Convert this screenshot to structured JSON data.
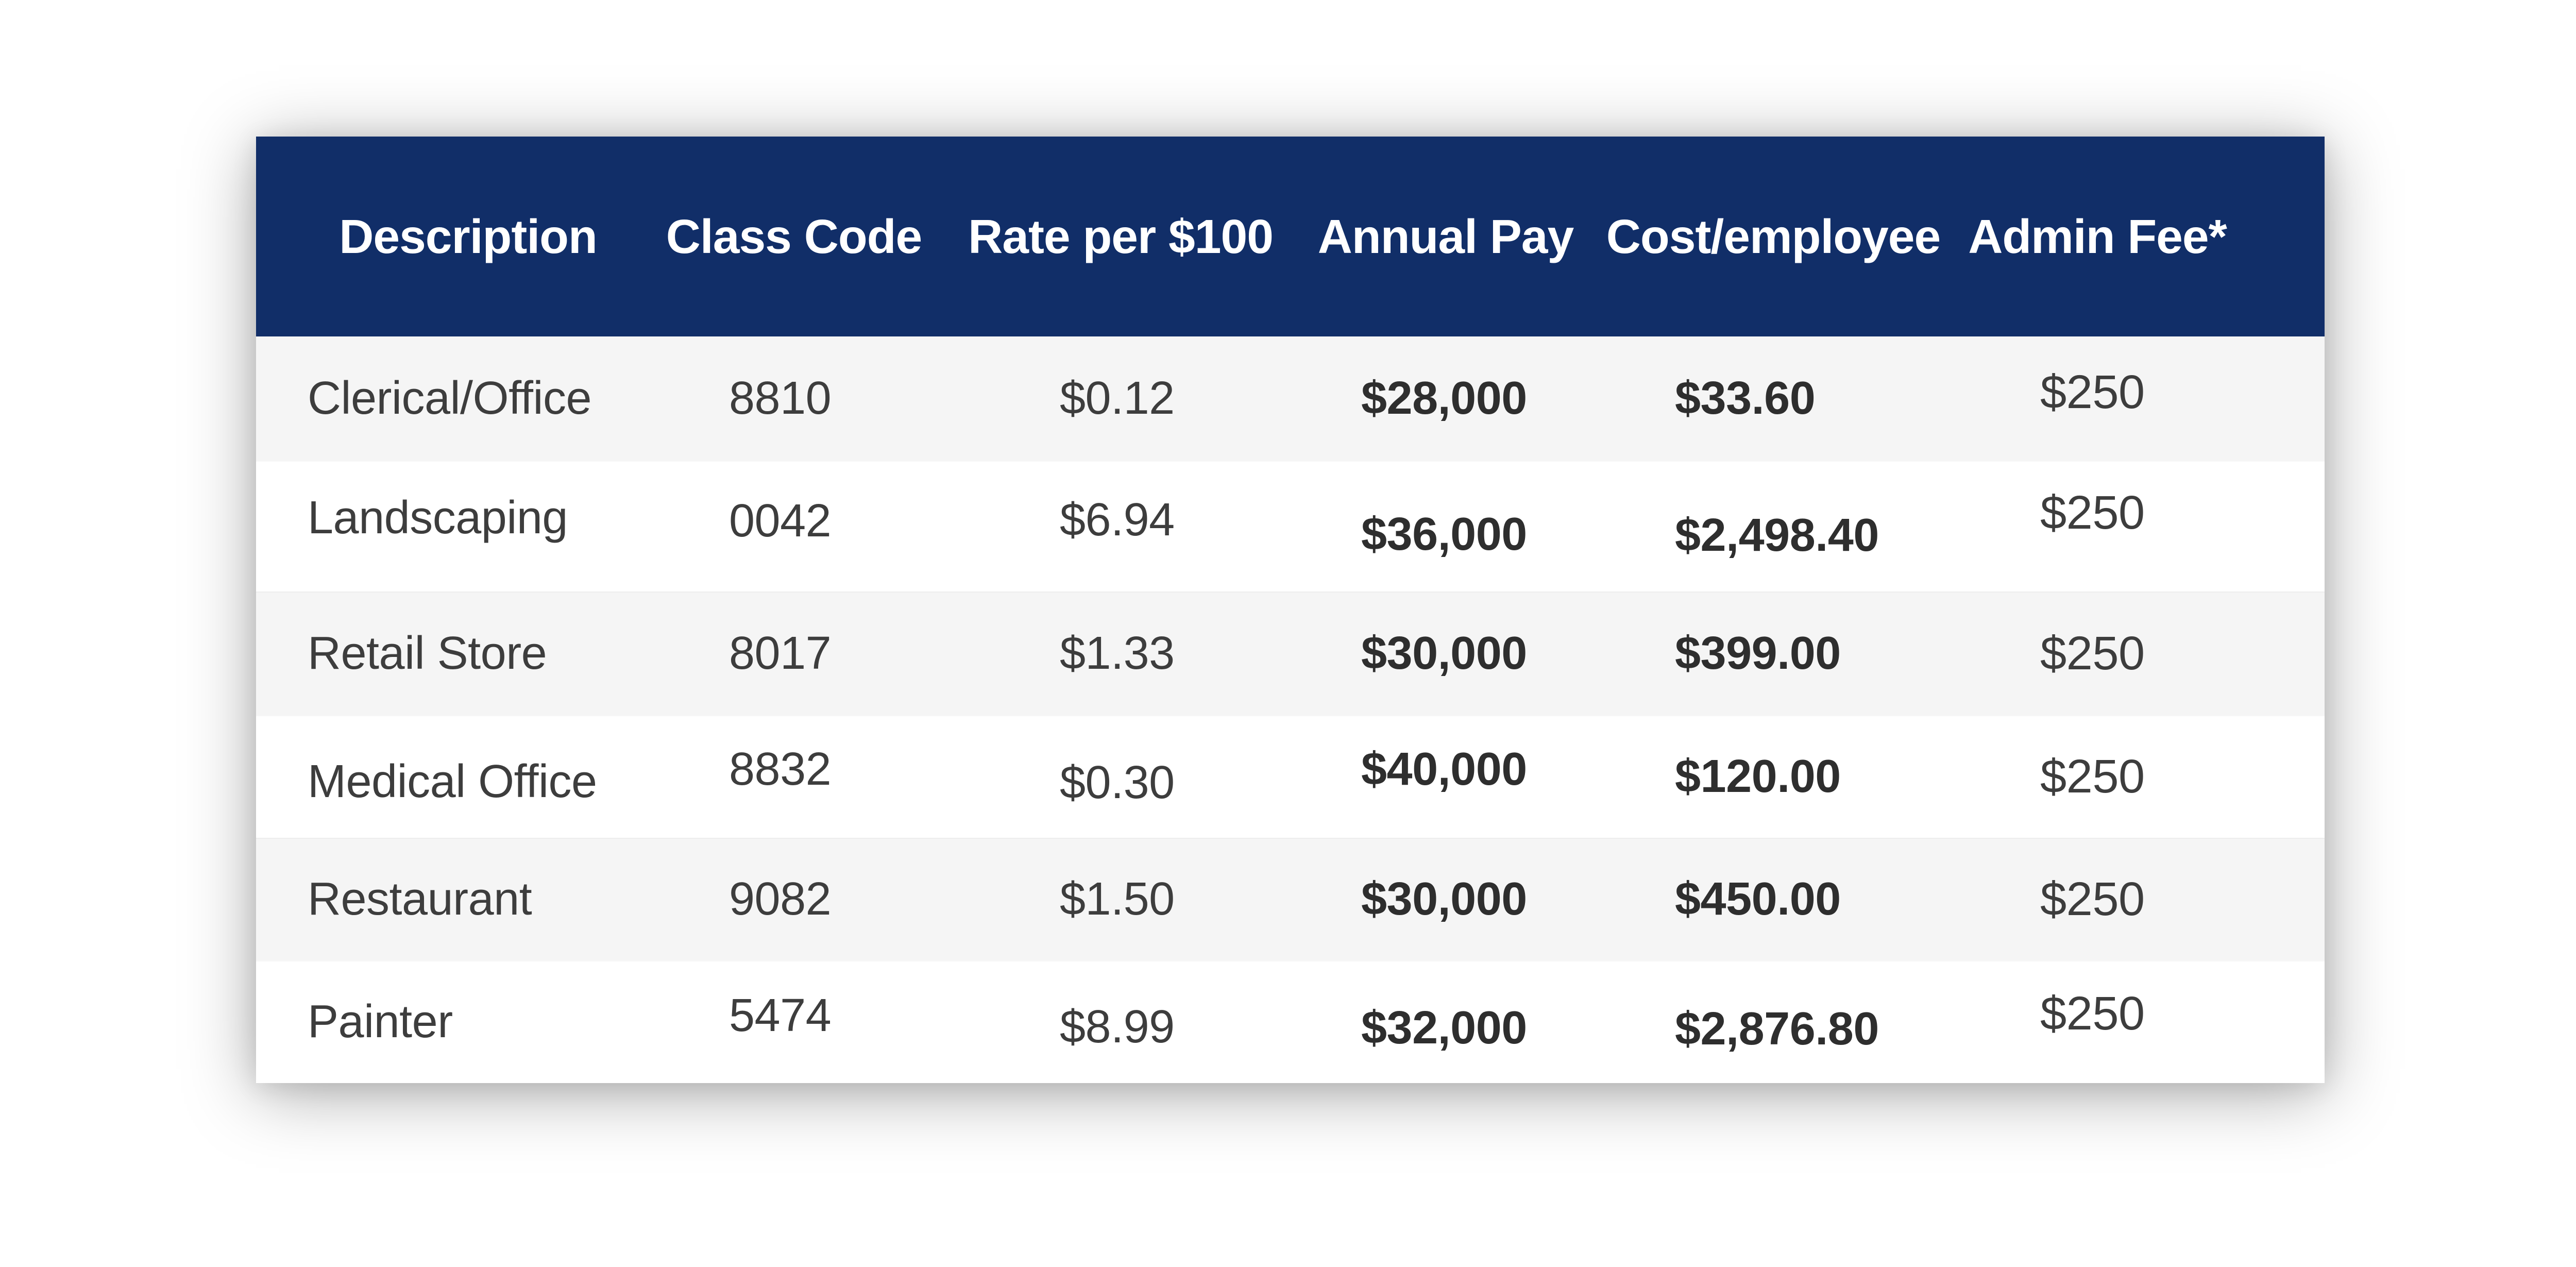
{
  "chart_data": {
    "type": "table",
    "columns": [
      "Description",
      "Class Code",
      "Rate per $100",
      "Annual Pay",
      "Cost/employee",
      "Admin Fee*"
    ],
    "rows": [
      [
        "Clerical/Office",
        "8810",
        "$0.12",
        "$28,000",
        "$33.60",
        "$250"
      ],
      [
        "Landscaping",
        "0042",
        "$6.94",
        "$36,000",
        "$2,498.40",
        "$250"
      ],
      [
        "Retail Store",
        "8017",
        "$1.33",
        "$30,000",
        "$399.00",
        "$250"
      ],
      [
        "Medical Office",
        "8832",
        "$0.30",
        "$40,000",
        "$120.00",
        "$250"
      ],
      [
        "Restaurant",
        "9082",
        "$1.50",
        "$30,000",
        "$450.00",
        "$250"
      ],
      [
        "Painter",
        "5474",
        "$8.99",
        "$32,000",
        "$2,876.80",
        "$250"
      ]
    ],
    "layout_hints": {
      "legend": "none",
      "grid": "row-stripes",
      "bold_columns": [
        "Annual Pay",
        "Cost/employee"
      ],
      "header_bg": "#112e68",
      "header_text_color": "#ffffff",
      "alt_row_bg": "#f5f5f5",
      "row_bg": "#ffffff",
      "body_text_color": "#3d3d3d"
    }
  }
}
